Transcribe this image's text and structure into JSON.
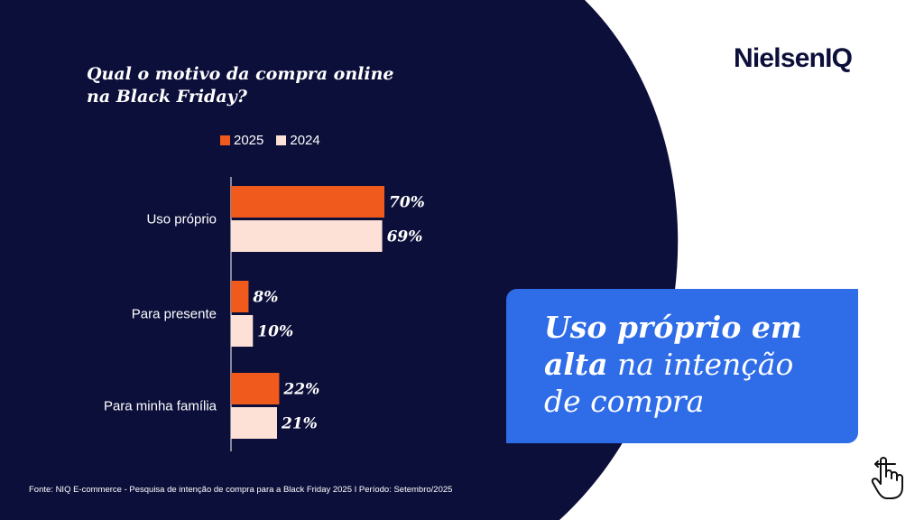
{
  "colors": {
    "background_dark": "#0c0f3a",
    "series_2025": "#f05a1c",
    "series_2024": "#fde1d6",
    "callout_blue": "#2e6ce8",
    "text_light": "#ffffff",
    "brand_dark": "#0c0f3a"
  },
  "brand": {
    "name": "NielsenIQ"
  },
  "question": {
    "line1": "Qual o motivo da compra online",
    "line2": "na Black Friday?"
  },
  "legend": {
    "label_2025": "2025",
    "label_2024": "2024"
  },
  "chart_data": {
    "type": "bar",
    "orientation": "horizontal",
    "title": "Qual o motivo da compra online na Black Friday?",
    "categories": [
      "Uso próprio",
      "Para presente",
      "Para minha família"
    ],
    "series": [
      {
        "name": "2025",
        "values": [
          70,
          8,
          22
        ],
        "labels": [
          "70%",
          "8%",
          "22%"
        ]
      },
      {
        "name": "2024",
        "values": [
          69,
          10,
          21
        ],
        "labels": [
          "69%",
          "10%",
          "21%"
        ]
      }
    ],
    "xlim": [
      0,
      100
    ],
    "legend_position": "top",
    "grid": false
  },
  "callout": {
    "part1": "Uso próprio em",
    "part2_bold": "alta",
    "part2_rest": " na intenção",
    "part3": "de compra"
  },
  "source": "Fonte: NIQ E-commerce - Pesquisa de intenção de compra para a Black Friday 2025 I Período: Setembro/2025",
  "icons": {
    "corner": "hand-pointer-icon"
  }
}
